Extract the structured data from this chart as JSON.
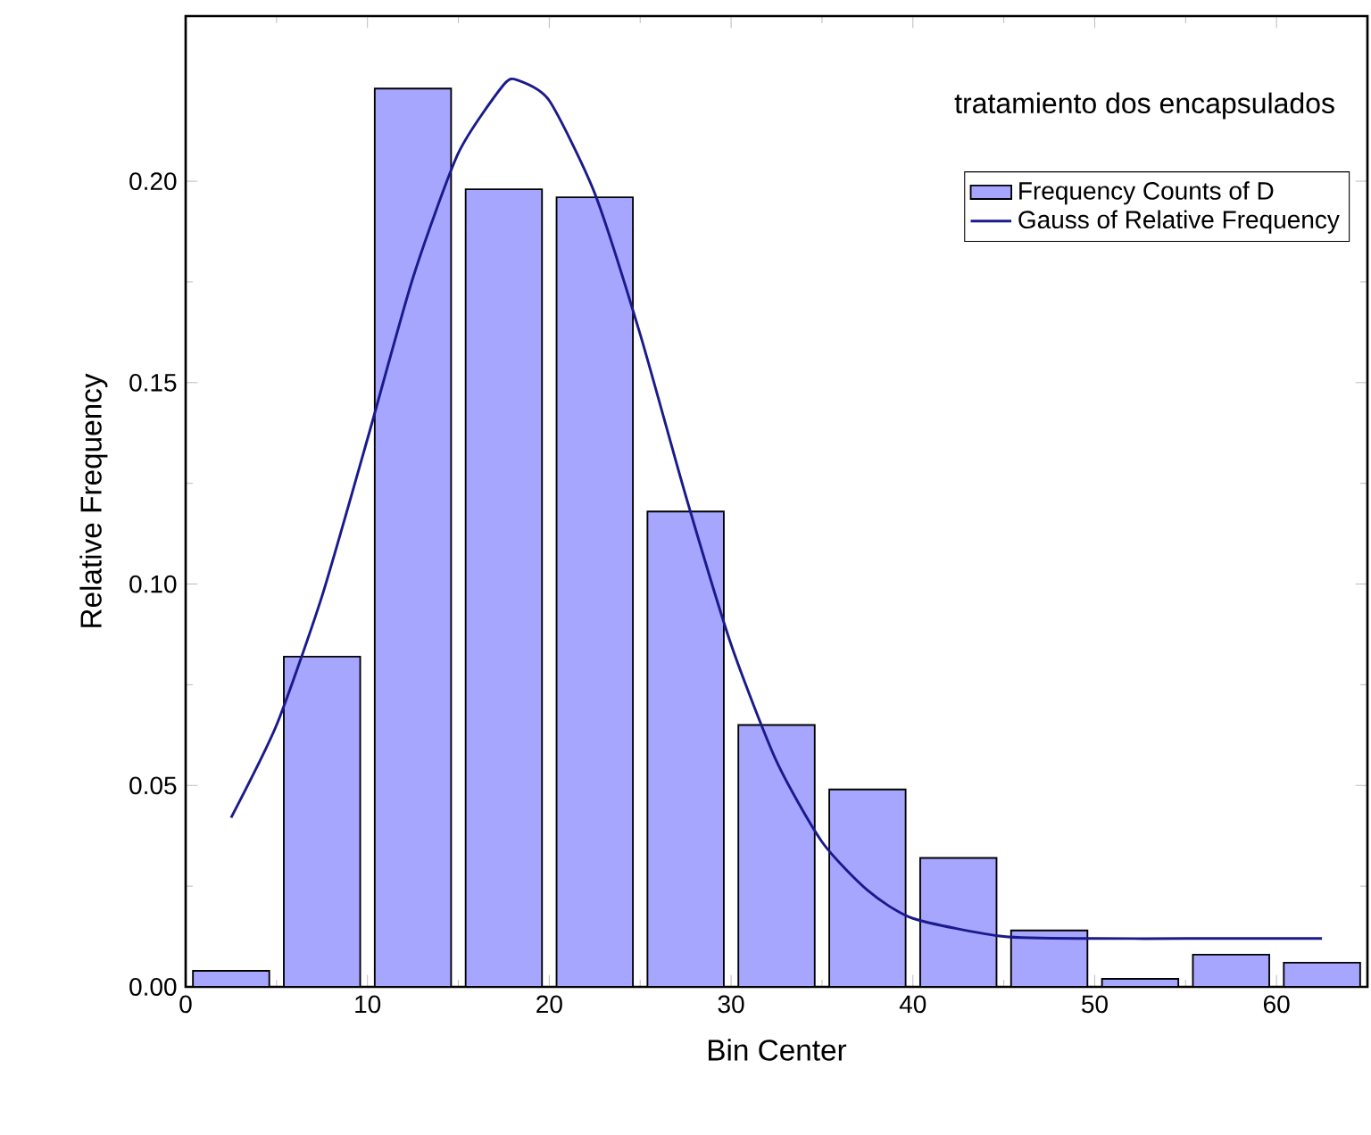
{
  "chart_data": {
    "type": "bar",
    "xlabel": "Bin Center",
    "ylabel": "Relative Frequency",
    "annotations": [
      "tratamiento dos encapsulados"
    ],
    "x": [
      2.5,
      7.5,
      12.5,
      17.5,
      22.5,
      27.5,
      32.5,
      37.5,
      42.5,
      47.5,
      52.5,
      57.5,
      62.5
    ],
    "series": [
      {
        "name": "Frequency Counts of D",
        "color": "#a6a6ff",
        "values": [
          0.004,
          0.082,
          0.223,
          0.198,
          0.196,
          0.118,
          0.065,
          0.049,
          0.032,
          0.014,
          0.002,
          0.008,
          0.006
        ]
      },
      {
        "name": "Gauss of Relative Frequency",
        "type": "line",
        "color": "#1a1a8c",
        "x": [
          2.5,
          5,
          7.5,
          10,
          12.5,
          15,
          17.5,
          18.3,
          20,
          22.5,
          25,
          27.5,
          30,
          32.5,
          35,
          37.5,
          40,
          45,
          50,
          55,
          62.5
        ],
        "values": [
          0.042,
          0.065,
          0.097,
          0.136,
          0.176,
          0.207,
          0.224,
          0.225,
          0.22,
          0.197,
          0.162,
          0.122,
          0.085,
          0.056,
          0.036,
          0.024,
          0.017,
          0.0125,
          0.012,
          0.012,
          0.012
        ]
      }
    ],
    "xlim": [
      0,
      65
    ],
    "ylim": [
      0,
      0.241
    ],
    "xticks": [
      0,
      10,
      20,
      30,
      40,
      50,
      60
    ],
    "yticks": [
      {
        "value": 0,
        "label": "0.00"
      },
      {
        "value": 0.05,
        "label": "0.05"
      },
      {
        "value": 0.1,
        "label": "0.10"
      },
      {
        "value": 0.15,
        "label": "0.15"
      },
      {
        "value": 0.2,
        "label": "0.20"
      }
    ],
    "legend": "top right"
  }
}
